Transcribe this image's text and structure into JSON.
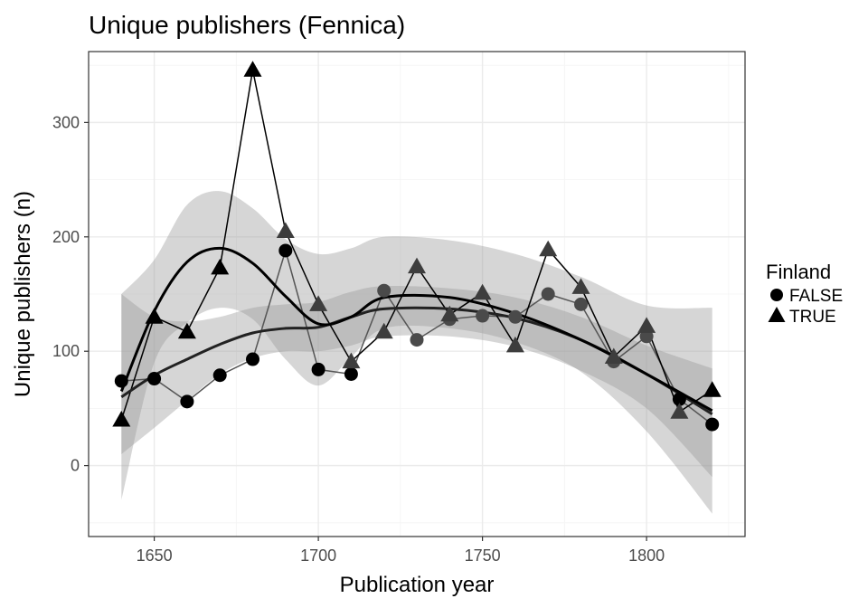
{
  "chart_data": {
    "type": "line",
    "title": "Unique publishers (Fennica)",
    "xlabel": "Publication year",
    "ylabel": "Unique publishers (n)",
    "xlim": [
      1630,
      1830
    ],
    "ylim": [
      -62,
      362
    ],
    "x_ticks": [
      "1650",
      "1700",
      "1750",
      "1800"
    ],
    "y_ticks": [
      "0",
      "100",
      "200",
      "300"
    ],
    "grid": true,
    "legend": {
      "title": "Finland",
      "position": "right",
      "entries": [
        {
          "label": "FALSE",
          "shape": "circle"
        },
        {
          "label": "TRUE",
          "shape": "triangle"
        }
      ]
    },
    "series": [
      {
        "name": "FALSE",
        "shape": "circle",
        "x": [
          1640,
          1650,
          1660,
          1670,
          1680,
          1690,
          1700,
          1710,
          1720,
          1730,
          1740,
          1750,
          1760,
          1770,
          1780,
          1790,
          1800,
          1810,
          1820
        ],
        "y": [
          74,
          76,
          56,
          79,
          93,
          188,
          84,
          80,
          153,
          110,
          128,
          131,
          130,
          150,
          141,
          91,
          113,
          58,
          36
        ],
        "smooth": [
          60,
          79,
          93,
          106,
          116,
          120,
          121,
          130,
          137,
          137,
          129,
          110,
          80,
          45
        ],
        "band_upper": [
          150,
          130,
          126,
          130,
          138,
          141,
          143,
          152,
          157,
          155,
          147,
          130,
          105,
          85
        ],
        "band_lower": [
          10,
          33,
          57,
          80,
          94,
          100,
          100,
          105,
          113,
          113,
          104,
          83,
          50,
          -10
        ]
      },
      {
        "name": "TRUE",
        "shape": "triangle",
        "x": [
          1640,
          1650,
          1660,
          1670,
          1680,
          1690,
          1700,
          1710,
          1720,
          1730,
          1740,
          1750,
          1760,
          1770,
          1780,
          1790,
          1800,
          1810,
          1820
        ],
        "y": [
          40,
          130,
          117,
          173,
          346,
          205,
          141,
          91,
          117,
          174,
          132,
          151,
          105,
          189,
          156,
          95,
          122,
          47,
          66
        ],
        "smooth": [
          65,
          135,
          178,
          190,
          177,
          148,
          124,
          130,
          147,
          147,
          133,
          110,
          80,
          48
        ],
        "band_upper": [
          150,
          180,
          228,
          240,
          225,
          198,
          185,
          190,
          200,
          197,
          185,
          165,
          140,
          138
        ],
        "band_lower": [
          -30,
          90,
          125,
          138,
          128,
          93,
          70,
          95,
          120,
          120,
          108,
          82,
          30,
          -42
        ]
      }
    ],
    "smooth_x": [
      1640,
      1650,
      1660,
      1670,
      1680,
      1690,
      1700,
      1710,
      1720,
      1740,
      1760,
      1780,
      1800,
      1820
    ],
    "colors": {
      "background": "#ffffff",
      "grid_major": "#ebebeb",
      "grid_minor": "#f4f4f4",
      "panel_border": "#333333",
      "false_series": "#555555",
      "true_series": "#000000",
      "band": "#999999",
      "smooth": "#000000"
    }
  }
}
